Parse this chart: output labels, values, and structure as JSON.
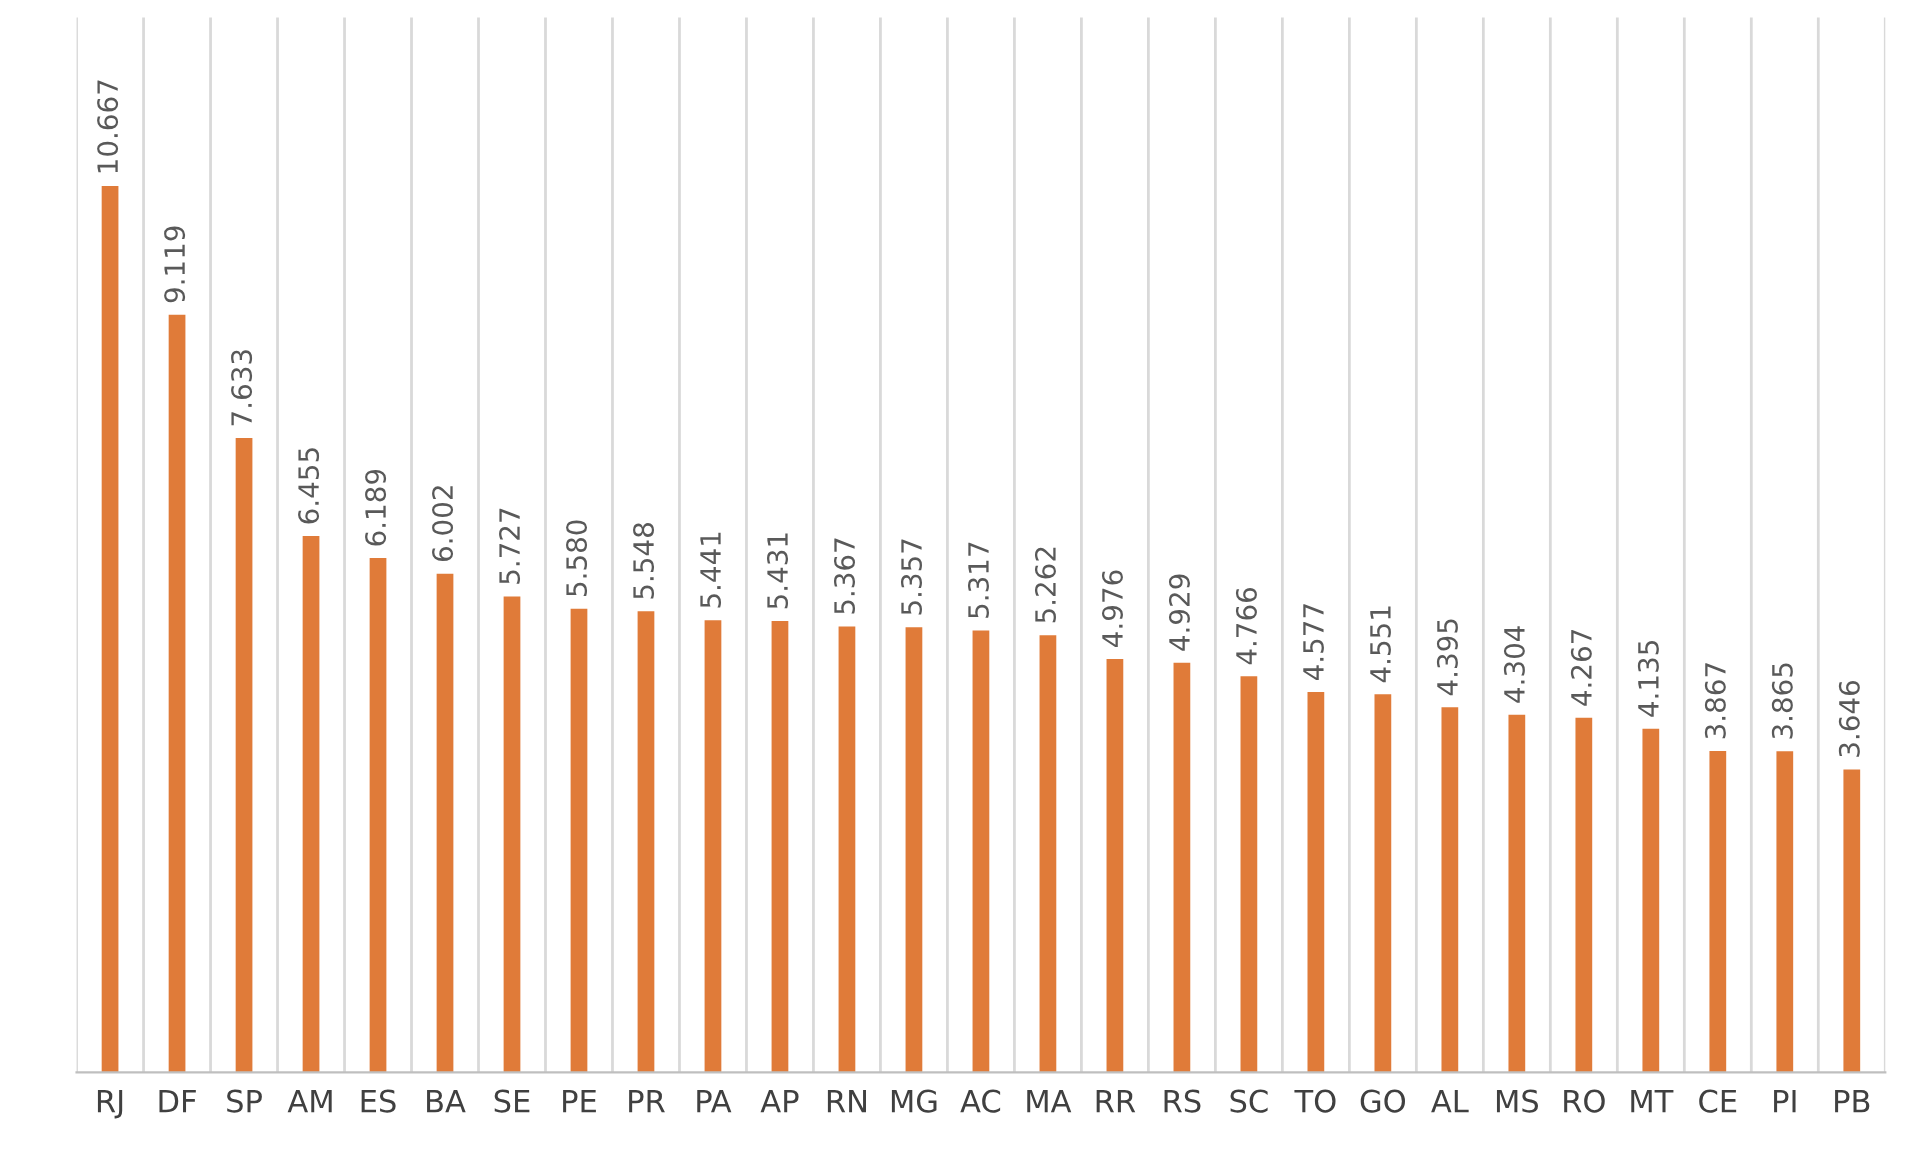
{
  "chart_data": {
    "type": "bar",
    "categories": [
      "RJ",
      "DF",
      "SP",
      "AM",
      "ES",
      "BA",
      "SE",
      "PE",
      "PR",
      "PA",
      "AP",
      "RN",
      "MG",
      "AC",
      "MA",
      "RR",
      "RS",
      "SC",
      "TO",
      "GO",
      "AL",
      "MS",
      "RO",
      "MT",
      "CE",
      "PI",
      "PB"
    ],
    "values": [
      10.667,
      9.119,
      7.633,
      6.455,
      6.189,
      6.002,
      5.727,
      5.58,
      5.548,
      5.441,
      5.431,
      5.367,
      5.357,
      5.317,
      5.262,
      4.976,
      4.929,
      4.766,
      4.577,
      4.551,
      4.395,
      4.304,
      4.267,
      4.135,
      3.867,
      3.865,
      3.646
    ],
    "value_labels": [
      "10.667",
      "9.119",
      "7.633",
      "6.455",
      "6.189",
      "6.002",
      "5.727",
      "5.580",
      "5.548",
      "5.441",
      "5.431",
      "5.367",
      "5.357",
      "5.317",
      "5.262",
      "4.976",
      "4.929",
      "4.766",
      "4.577",
      "4.551",
      "4.395",
      "4.304",
      "4.267",
      "4.135",
      "3.867",
      "3.865",
      "3.646"
    ],
    "color": "#e07b39",
    "grid": "x"
  }
}
